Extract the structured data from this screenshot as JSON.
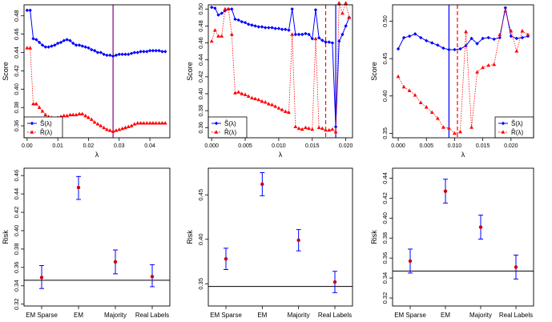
{
  "colors": {
    "s_hat": "#0000ff",
    "r_hat": "#ff0000",
    "risk_point": "#cc0000",
    "risk_bar": "#0000ff",
    "lambda_line": "#7f0080",
    "lambda_line_blue": "#0000ff",
    "ref_line": "#000000"
  },
  "chart_data": [
    {
      "type": "line",
      "xlabel": "λ",
      "ylabel": "Score",
      "xlim": [
        -0.001,
        0.0465
      ],
      "ylim": [
        0.347,
        0.492
      ],
      "xticks": [
        0.0,
        0.01,
        0.02,
        0.03,
        0.04
      ],
      "xtick_labels": [
        "0.00",
        "0.01",
        "0.02",
        "0.03",
        "0.04"
      ],
      "yticks": [
        0.36,
        0.38,
        0.4,
        0.42,
        0.44,
        0.46,
        0.48
      ],
      "ytick_labels": [
        "0.36",
        "0.38",
        "0.40",
        "0.42",
        "0.44",
        "0.46",
        "0.48"
      ],
      "vlines": [
        {
          "x": 0.028,
          "style": "solid",
          "color": "purple"
        }
      ],
      "legend": {
        "placement": "bottom-left",
        "entries": [
          "Ŝ(λ)",
          "R̂(λ)"
        ]
      },
      "series": [
        {
          "name": "Ŝ(λ)",
          "marker": "diamond",
          "line": "solid",
          "x": [
            0.0,
            0.001,
            0.002,
            0.003,
            0.004,
            0.005,
            0.006,
            0.007,
            0.008,
            0.009,
            0.01,
            0.011,
            0.012,
            0.013,
            0.014,
            0.015,
            0.016,
            0.017,
            0.018,
            0.019,
            0.02,
            0.021,
            0.022,
            0.023,
            0.024,
            0.025,
            0.026,
            0.027,
            0.028,
            0.029,
            0.03,
            0.031,
            0.032,
            0.033,
            0.034,
            0.035,
            0.036,
            0.037,
            0.038,
            0.039,
            0.04,
            0.041,
            0.042,
            0.043,
            0.044,
            0.045
          ],
          "y": [
            0.486,
            0.486,
            0.455,
            0.454,
            0.451,
            0.448,
            0.446,
            0.446,
            0.447,
            0.448,
            0.45,
            0.451,
            0.453,
            0.454,
            0.453,
            0.45,
            0.448,
            0.448,
            0.447,
            0.446,
            0.445,
            0.443,
            0.442,
            0.44,
            0.44,
            0.438,
            0.437,
            0.437,
            0.436,
            0.437,
            0.438,
            0.438,
            0.438,
            0.438,
            0.439,
            0.44,
            0.44,
            0.441,
            0.441,
            0.441,
            0.442,
            0.442,
            0.442,
            0.442,
            0.441,
            0.441
          ]
        },
        {
          "name": "R̂(λ)",
          "marker": "triangle",
          "line": "dotted",
          "x": [
            0.0,
            0.001,
            0.002,
            0.003,
            0.004,
            0.005,
            0.006,
            0.007,
            0.008,
            0.009,
            0.01,
            0.011,
            0.012,
            0.013,
            0.014,
            0.015,
            0.016,
            0.017,
            0.018,
            0.019,
            0.02,
            0.021,
            0.022,
            0.023,
            0.024,
            0.025,
            0.026,
            0.027,
            0.028,
            0.029,
            0.03,
            0.031,
            0.032,
            0.033,
            0.034,
            0.035,
            0.036,
            0.037,
            0.038,
            0.039,
            0.04,
            0.041,
            0.042,
            0.043,
            0.044,
            0.045
          ],
          "y": [
            0.445,
            0.445,
            0.384,
            0.384,
            0.38,
            0.376,
            0.372,
            0.37,
            0.369,
            0.368,
            0.369,
            0.37,
            0.371,
            0.371,
            0.372,
            0.372,
            0.372,
            0.373,
            0.373,
            0.371,
            0.369,
            0.367,
            0.364,
            0.362,
            0.36,
            0.358,
            0.356,
            0.355,
            0.354,
            0.355,
            0.356,
            0.357,
            0.358,
            0.359,
            0.36,
            0.362,
            0.363,
            0.363,
            0.363,
            0.363,
            0.363,
            0.363,
            0.363,
            0.363,
            0.363,
            0.363
          ]
        }
      ]
    },
    {
      "type": "line",
      "xlabel": "λ",
      "ylabel": "Score",
      "xlim": [
        -0.0005,
        0.021
      ],
      "ylim": [
        0.348,
        0.505
      ],
      "xticks": [
        0.0,
        0.005,
        0.01,
        0.015,
        0.02
      ],
      "xtick_labels": [
        "0.000",
        "0.005",
        "0.010",
        "0.015",
        "0.020"
      ],
      "yticks": [
        0.36,
        0.38,
        0.4,
        0.42,
        0.44,
        0.46,
        0.48,
        0.5
      ],
      "ytick_labels": [
        "0.36",
        "0.38",
        "0.40",
        "0.42",
        "0.44",
        "0.46",
        "0.48",
        "0.50"
      ],
      "vlines": [
        {
          "x": 0.017,
          "style": "dashed",
          "color": "red"
        },
        {
          "x": 0.0185,
          "style": "solid",
          "color": "blue"
        }
      ],
      "legend": {
        "placement": "bottom-left",
        "entries": [
          "Ŝ(λ)",
          "R̂(λ)"
        ]
      },
      "series": [
        {
          "name": "Ŝ(λ)",
          "marker": "diamond",
          "line": "solid",
          "x": [
            0.0,
            0.0005,
            0.001,
            0.0015,
            0.002,
            0.0025,
            0.003,
            0.0035,
            0.004,
            0.0045,
            0.005,
            0.0055,
            0.006,
            0.0065,
            0.007,
            0.0075,
            0.008,
            0.0085,
            0.009,
            0.0095,
            0.01,
            0.0105,
            0.011,
            0.0115,
            0.012,
            0.0125,
            0.013,
            0.0135,
            0.014,
            0.0145,
            0.015,
            0.0155,
            0.016,
            0.0165,
            0.017,
            0.0175,
            0.018,
            0.0185,
            0.019,
            0.0195,
            0.02,
            0.0205
          ],
          "y": [
            0.502,
            0.501,
            0.493,
            0.495,
            0.498,
            0.5,
            0.5,
            0.488,
            0.487,
            0.485,
            0.484,
            0.482,
            0.481,
            0.48,
            0.479,
            0.479,
            0.478,
            0.478,
            0.478,
            0.477,
            0.477,
            0.476,
            0.476,
            0.475,
            0.5,
            0.47,
            0.47,
            0.47,
            0.471,
            0.47,
            0.465,
            0.499,
            0.466,
            0.463,
            0.461,
            0.461,
            0.46,
            0.361,
            0.462,
            0.47,
            0.48,
            0.49
          ]
        },
        {
          "name": "R̂(λ)",
          "marker": "triangle",
          "line": "dotted",
          "x": [
            0.0,
            0.0005,
            0.001,
            0.0015,
            0.002,
            0.0025,
            0.003,
            0.0035,
            0.004,
            0.0045,
            0.005,
            0.0055,
            0.006,
            0.0065,
            0.007,
            0.0075,
            0.008,
            0.0085,
            0.009,
            0.0095,
            0.01,
            0.0105,
            0.011,
            0.0115,
            0.012,
            0.0125,
            0.013,
            0.0135,
            0.014,
            0.0145,
            0.015,
            0.0155,
            0.016,
            0.0165,
            0.017,
            0.0175,
            0.018,
            0.0185,
            0.019,
            0.0195,
            0.02,
            0.0205
          ],
          "y": [
            0.462,
            0.475,
            0.468,
            0.468,
            0.5,
            0.5,
            0.47,
            0.401,
            0.402,
            0.4,
            0.399,
            0.397,
            0.395,
            0.394,
            0.393,
            0.391,
            0.39,
            0.388,
            0.387,
            0.385,
            0.383,
            0.381,
            0.379,
            0.378,
            0.47,
            0.361,
            0.359,
            0.358,
            0.36,
            0.359,
            0.358,
            0.465,
            0.36,
            0.359,
            0.357,
            0.357,
            0.358,
            0.355,
            0.507,
            0.495,
            0.507,
            0.49
          ]
        }
      ]
    },
    {
      "type": "line",
      "xlabel": "λ",
      "ylabel": "Score",
      "xlim": [
        -0.001,
        0.024
      ],
      "ylim": [
        0.344,
        0.522
      ],
      "xticks": [
        0.0,
        0.005,
        0.01,
        0.015,
        0.02
      ],
      "xtick_labels": [
        "0.000",
        "0.005",
        "0.010",
        "0.015",
        "0.020"
      ],
      "yticks": [
        0.35,
        0.4,
        0.45,
        0.5
      ],
      "ytick_labels": [
        "0.35",
        "0.40",
        "0.45",
        "0.50"
      ],
      "vlines": [
        {
          "x": 0.009,
          "style": "solid",
          "color": "blue"
        },
        {
          "x": 0.0105,
          "style": "dashed",
          "color": "red"
        }
      ],
      "legend": {
        "placement": "bottom-right",
        "entries": [
          "Ŝ(λ)",
          "R̂(λ)"
        ]
      },
      "series": [
        {
          "name": "Ŝ(λ)",
          "marker": "diamond",
          "line": "solid",
          "x": [
            0.0,
            0.001,
            0.002,
            0.003,
            0.004,
            0.005,
            0.006,
            0.007,
            0.008,
            0.009,
            0.01,
            0.011,
            0.012,
            0.013,
            0.014,
            0.015,
            0.016,
            0.017,
            0.018,
            0.019,
            0.02,
            0.021,
            0.022,
            0.023
          ],
          "y": [
            0.463,
            0.478,
            0.48,
            0.483,
            0.478,
            0.474,
            0.471,
            0.468,
            0.464,
            0.462,
            0.462,
            0.463,
            0.467,
            0.477,
            0.47,
            0.477,
            0.478,
            0.476,
            0.478,
            0.518,
            0.48,
            0.477,
            0.478,
            0.48
          ]
        },
        {
          "name": "R̂(λ)",
          "marker": "triangle",
          "line": "dotted",
          "x": [
            0.0,
            0.001,
            0.002,
            0.003,
            0.004,
            0.005,
            0.006,
            0.007,
            0.008,
            0.009,
            0.01,
            0.011,
            0.012,
            0.013,
            0.014,
            0.015,
            0.016,
            0.017,
            0.018,
            0.019,
            0.02,
            0.021,
            0.022,
            0.023
          ],
          "y": [
            0.426,
            0.412,
            0.407,
            0.401,
            0.391,
            0.385,
            0.378,
            0.37,
            0.358,
            0.357,
            0.35,
            0.352,
            0.486,
            0.358,
            0.432,
            0.438,
            0.441,
            0.442,
            0.482,
            0.514,
            0.487,
            0.46,
            0.487,
            0.482
          ]
        }
      ]
    },
    {
      "type": "scatter",
      "subtype": "errorbar",
      "ylabel": "Risk",
      "xlabel": "",
      "categories": [
        "EM Sparse",
        "EM",
        "Majority",
        "Real Labels"
      ],
      "values": [
        0.349,
        0.447,
        0.366,
        0.35
      ],
      "lower": [
        0.337,
        0.434,
        0.353,
        0.339
      ],
      "upper": [
        0.362,
        0.459,
        0.379,
        0.363
      ],
      "hline": 0.346,
      "ylim": [
        0.318,
        0.468
      ],
      "yticks": [
        0.32,
        0.34,
        0.36,
        0.38,
        0.4,
        0.42,
        0.44,
        0.46
      ],
      "ytick_labels": [
        "0.32",
        "0.34",
        "0.36",
        "0.38",
        "0.40",
        "0.42",
        "0.44",
        "0.46"
      ]
    },
    {
      "type": "scatter",
      "subtype": "errorbar",
      "ylabel": "Risk",
      "xlabel": "",
      "categories": [
        "EM Sparse",
        "EM",
        "Majority",
        "Real Labels"
      ],
      "values": [
        0.378,
        0.462,
        0.399,
        0.352
      ],
      "lower": [
        0.366,
        0.449,
        0.387,
        0.34
      ],
      "upper": [
        0.39,
        0.475,
        0.411,
        0.364
      ],
      "hline": 0.347,
      "ylim": [
        0.325,
        0.48
      ],
      "yticks": [
        0.35,
        0.4,
        0.45
      ],
      "ytick_labels": [
        "0.35",
        "0.40",
        "0.45"
      ]
    },
    {
      "type": "scatter",
      "subtype": "errorbar",
      "ylabel": "Risk",
      "xlabel": "",
      "categories": [
        "EM Sparse",
        "EM",
        "Majority",
        "Real Labels"
      ],
      "values": [
        0.357,
        0.427,
        0.391,
        0.351
      ],
      "lower": [
        0.345,
        0.415,
        0.379,
        0.339
      ],
      "upper": [
        0.369,
        0.439,
        0.403,
        0.363
      ],
      "hline": 0.347,
      "ylim": [
        0.312,
        0.45
      ],
      "yticks": [
        0.32,
        0.34,
        0.36,
        0.38,
        0.4,
        0.42,
        0.44
      ],
      "ytick_labels": [
        "0.32",
        "0.34",
        "0.36",
        "0.38",
        "0.40",
        "0.42",
        "0.44"
      ]
    }
  ]
}
